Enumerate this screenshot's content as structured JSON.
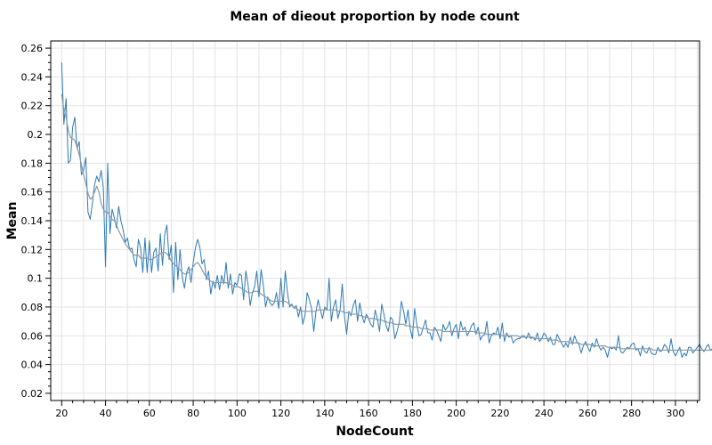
{
  "chart_data": {
    "type": "line",
    "title": "Mean of dieout proportion by node count",
    "xlabel": "NodeCount",
    "ylabel": "Mean",
    "xlim": [
      15,
      311
    ],
    "ylim": [
      0.015,
      0.265
    ],
    "x_ticks": [
      "20",
      "40",
      "60",
      "80",
      "100",
      "120",
      "140",
      "160",
      "180",
      "200",
      "220",
      "240",
      "260",
      "280",
      "300"
    ],
    "y_ticks": [
      "0.02",
      "0.04",
      "0.06",
      "0.08",
      "0.1",
      "0.12",
      "0.14",
      "0.16",
      "0.18",
      "0.2",
      "0.22",
      "0.24",
      "0.26"
    ],
    "grid": true,
    "colors": {
      "raw": "#2e7ab6",
      "smoothed": "#8a9aa6",
      "grid": "#e3e3e3",
      "frame": "#000000"
    },
    "series": [
      {
        "role": "raw",
        "x_start": 20,
        "x_step": 1,
        "values": [
          0.25,
          0.207,
          0.225,
          0.18,
          0.182,
          0.205,
          0.212,
          0.19,
          0.195,
          0.172,
          0.175,
          0.184,
          0.146,
          0.141,
          0.152,
          0.165,
          0.171,
          0.167,
          0.175,
          0.163,
          0.108,
          0.18,
          0.131,
          0.148,
          0.142,
          0.135,
          0.15,
          0.14,
          0.134,
          0.125,
          0.128,
          0.12,
          0.121,
          0.113,
          0.108,
          0.127,
          0.121,
          0.104,
          0.128,
          0.104,
          0.126,
          0.104,
          0.118,
          0.121,
          0.105,
          0.131,
          0.109,
          0.13,
          0.137,
          0.113,
          0.123,
          0.09,
          0.125,
          0.099,
          0.12,
          0.101,
          0.093,
          0.104,
          0.108,
          0.097,
          0.111,
          0.121,
          0.127,
          0.122,
          0.11,
          0.113,
          0.099,
          0.105,
          0.089,
          0.098,
          0.093,
          0.102,
          0.092,
          0.102,
          0.096,
          0.111,
          0.093,
          0.103,
          0.089,
          0.097,
          0.095,
          0.103,
          0.102,
          0.085,
          0.105,
          0.096,
          0.081,
          0.09,
          0.094,
          0.105,
          0.087,
          0.106,
          0.095,
          0.08,
          0.087,
          0.083,
          0.081,
          0.083,
          0.09,
          0.079,
          0.1,
          0.08,
          0.105,
          0.09,
          0.08,
          0.082,
          0.079,
          0.081,
          0.073,
          0.08,
          0.068,
          0.074,
          0.09,
          0.085,
          0.079,
          0.063,
          0.077,
          0.085,
          0.078,
          0.072,
          0.08,
          0.078,
          0.1,
          0.07,
          0.08,
          0.085,
          0.072,
          0.078,
          0.096,
          0.074,
          0.061,
          0.077,
          0.074,
          0.081,
          0.085,
          0.07,
          0.083,
          0.074,
          0.069,
          0.075,
          0.072,
          0.068,
          0.066,
          0.078,
          0.072,
          0.063,
          0.082,
          0.075,
          0.067,
          0.063,
          0.073,
          0.071,
          0.058,
          0.063,
          0.069,
          0.084,
          0.077,
          0.068,
          0.078,
          0.065,
          0.058,
          0.079,
          0.068,
          0.06,
          0.061,
          0.066,
          0.071,
          0.062,
          0.062,
          0.057,
          0.066,
          0.064,
          0.06,
          0.056,
          0.068,
          0.064,
          0.066,
          0.07,
          0.06,
          0.065,
          0.068,
          0.058,
          0.07,
          0.064,
          0.066,
          0.06,
          0.063,
          0.067,
          0.069,
          0.061,
          0.066,
          0.057,
          0.06,
          0.061,
          0.07,
          0.055,
          0.06,
          0.062,
          0.061,
          0.066,
          0.058,
          0.069,
          0.056,
          0.062,
          0.059,
          0.06,
          0.055,
          0.057,
          0.058,
          0.058,
          0.06,
          0.06,
          0.058,
          0.062,
          0.058,
          0.059,
          0.057,
          0.062,
          0.056,
          0.058,
          0.062,
          0.06,
          0.056,
          0.059,
          0.054,
          0.054,
          0.061,
          0.058,
          0.055,
          0.052,
          0.055,
          0.052,
          0.059,
          0.054,
          0.06,
          0.056,
          0.054,
          0.048,
          0.053,
          0.056,
          0.052,
          0.049,
          0.055,
          0.052,
          0.058,
          0.053,
          0.05,
          0.052,
          0.05,
          0.045,
          0.052,
          0.051,
          0.052,
          0.05,
          0.06,
          0.049,
          0.048,
          0.05,
          0.052,
          0.051,
          0.054,
          0.055,
          0.05,
          0.051,
          0.046,
          0.053,
          0.049,
          0.048,
          0.052,
          0.048,
          0.047,
          0.047,
          0.052,
          0.049,
          0.05,
          0.054,
          0.052,
          0.048,
          0.058,
          0.049,
          0.046,
          0.049,
          0.052,
          0.045,
          0.048,
          0.046,
          0.052,
          0.052,
          0.048,
          0.05,
          0.052,
          0.054,
          0.051,
          0.049,
          0.052,
          0.054,
          0.05,
          0.051,
          0.049,
          0.05,
          0.045
        ]
      },
      {
        "role": "smoothed",
        "x_start": 20,
        "x_step": 1,
        "values": [
          0.228,
          0.218,
          0.212,
          0.203,
          0.198,
          0.197,
          0.196,
          0.191,
          0.186,
          0.179,
          0.172,
          0.166,
          0.159,
          0.155,
          0.156,
          0.16,
          0.164,
          0.16,
          0.152,
          0.148,
          0.146,
          0.146,
          0.143,
          0.141,
          0.14,
          0.137,
          0.133,
          0.13,
          0.127,
          0.124,
          0.122,
          0.12,
          0.118,
          0.116,
          0.116,
          0.116,
          0.114,
          0.114,
          0.114,
          0.114,
          0.113,
          0.113,
          0.114,
          0.115,
          0.116,
          0.117,
          0.118,
          0.118,
          0.117,
          0.115,
          0.112,
          0.11,
          0.109,
          0.107,
          0.106,
          0.104,
          0.103,
          0.103,
          0.104,
          0.106,
          0.108,
          0.11,
          0.111,
          0.109,
          0.106,
          0.103,
          0.101,
          0.099,
          0.098,
          0.097,
          0.097,
          0.097,
          0.097,
          0.097,
          0.097,
          0.097,
          0.096,
          0.096,
          0.095,
          0.094,
          0.094,
          0.094,
          0.093,
          0.092,
          0.091,
          0.09,
          0.09,
          0.09,
          0.091,
          0.091,
          0.09,
          0.089,
          0.088,
          0.087,
          0.086,
          0.085,
          0.084,
          0.084,
          0.084,
          0.084,
          0.084,
          0.084,
          0.084,
          0.083,
          0.082,
          0.081,
          0.08,
          0.079,
          0.078,
          0.078,
          0.077,
          0.077,
          0.077,
          0.077,
          0.077,
          0.077,
          0.077,
          0.078,
          0.078,
          0.078,
          0.078,
          0.078,
          0.078,
          0.078,
          0.078,
          0.078,
          0.077,
          0.077,
          0.077,
          0.076,
          0.076,
          0.076,
          0.075,
          0.075,
          0.075,
          0.075,
          0.074,
          0.074,
          0.073,
          0.073,
          0.072,
          0.072,
          0.072,
          0.072,
          0.071,
          0.071,
          0.071,
          0.07,
          0.07,
          0.069,
          0.069,
          0.069,
          0.068,
          0.068,
          0.068,
          0.068,
          0.068,
          0.067,
          0.067,
          0.067,
          0.066,
          0.066,
          0.066,
          0.066,
          0.065,
          0.065,
          0.065,
          0.065,
          0.064,
          0.064,
          0.064,
          0.064,
          0.064,
          0.064,
          0.063,
          0.063,
          0.063,
          0.063,
          0.063,
          0.063,
          0.063,
          0.063,
          0.063,
          0.063,
          0.063,
          0.063,
          0.063,
          0.063,
          0.063,
          0.062,
          0.062,
          0.062,
          0.062,
          0.062,
          0.061,
          0.061,
          0.061,
          0.061,
          0.061,
          0.061,
          0.061,
          0.06,
          0.06,
          0.06,
          0.06,
          0.06,
          0.06,
          0.06,
          0.06,
          0.059,
          0.059,
          0.059,
          0.059,
          0.059,
          0.059,
          0.059,
          0.058,
          0.058,
          0.058,
          0.058,
          0.058,
          0.058,
          0.058,
          0.057,
          0.057,
          0.057,
          0.057,
          0.056,
          0.056,
          0.056,
          0.056,
          0.056,
          0.055,
          0.055,
          0.055,
          0.055,
          0.055,
          0.054,
          0.054,
          0.054,
          0.054,
          0.054,
          0.053,
          0.053,
          0.053,
          0.053,
          0.053,
          0.053,
          0.053,
          0.052,
          0.052,
          0.052,
          0.052,
          0.052,
          0.052,
          0.051,
          0.051,
          0.051,
          0.051,
          0.051,
          0.051,
          0.051,
          0.051,
          0.051,
          0.051,
          0.051,
          0.051,
          0.051,
          0.051,
          0.051,
          0.05,
          0.05,
          0.05,
          0.05,
          0.05,
          0.05,
          0.05,
          0.05,
          0.05,
          0.05,
          0.05,
          0.05,
          0.05,
          0.05,
          0.05,
          0.05,
          0.05,
          0.05,
          0.05,
          0.05,
          0.05,
          0.05,
          0.05,
          0.05,
          0.05,
          0.05,
          0.05,
          0.05,
          0.05,
          0.05,
          0.05,
          0.05,
          0.05,
          0.05,
          0.05,
          0.05,
          0.05,
          0.05,
          0.05,
          0.05,
          0.049,
          0.049
        ]
      }
    ]
  }
}
